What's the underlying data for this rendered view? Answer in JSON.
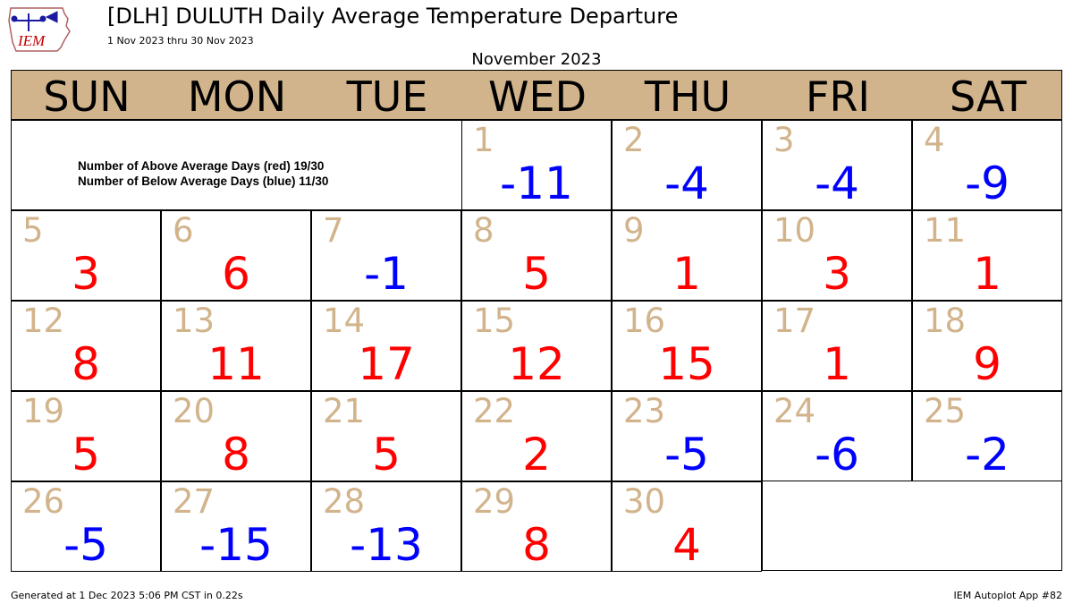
{
  "logo": {
    "text": "IEM",
    "icon": "iowa-state-outline-weather-station-icon"
  },
  "header": {
    "title": "[DLH] DULUTH Daily Average Temperature Departure",
    "subtitle": "1 Nov 2023 thru 30 Nov 2023",
    "month_title": "November 2023"
  },
  "summary": {
    "above": "Number of Above Average Days (red) 19/30",
    "below": "Number of Below Average Days (blue) 11/30"
  },
  "footer": {
    "generated": "Generated at 1 Dec 2023 5:06 PM CST in 0.22s",
    "app": "IEM Autoplot App #82"
  },
  "colors": {
    "above": "#ff0000",
    "below": "#0000ff",
    "day_number": "#d2b48c",
    "header_bg": "#d2b48c"
  },
  "chart_data": {
    "type": "table",
    "title": "[DLH] DULUTH Daily Average Temperature Departure",
    "month": "November 2023",
    "weekdays": [
      "SUN",
      "MON",
      "TUE",
      "WED",
      "THU",
      "FRI",
      "SAT"
    ],
    "first_weekday": "WED",
    "days": [
      1,
      2,
      3,
      4,
      5,
      6,
      7,
      8,
      9,
      10,
      11,
      12,
      13,
      14,
      15,
      16,
      17,
      18,
      19,
      20,
      21,
      22,
      23,
      24,
      25,
      26,
      27,
      28,
      29,
      30
    ],
    "departures": [
      -11,
      -4,
      -4,
      -9,
      3,
      6,
      -1,
      5,
      1,
      3,
      1,
      8,
      11,
      17,
      12,
      15,
      1,
      9,
      5,
      8,
      5,
      2,
      -5,
      -6,
      -2,
      -5,
      -15,
      -13,
      8,
      4
    ]
  }
}
